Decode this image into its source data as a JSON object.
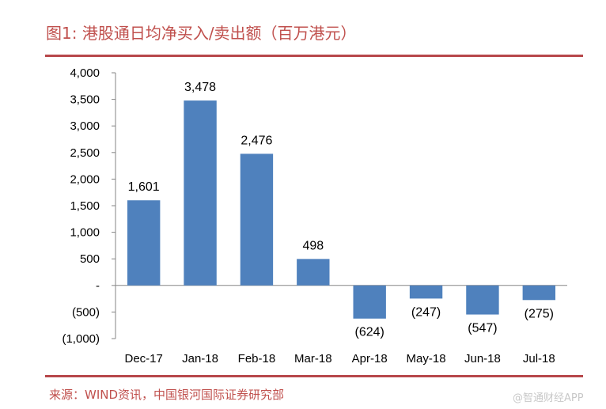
{
  "title": "图1: 港股通日均净买入/卖出额（百万港元）",
  "source": "来源：WIND资讯，中国银河国际证券研究部",
  "watermark": "@智通财经APP",
  "colors": {
    "bar": "#4f81bd",
    "accent": "#c0504d",
    "rule": "#b7474a"
  },
  "chart_data": {
    "type": "bar",
    "title": "图1: 港股通日均净买入/卖出额（百万港元）",
    "xlabel": "",
    "ylabel": "",
    "ylim": [
      -1000,
      4000
    ],
    "yticks": [
      4000,
      3500,
      3000,
      2500,
      2000,
      1500,
      1000,
      500,
      0,
      -500,
      -1000
    ],
    "ytick_labels": [
      "4,000",
      "3,500",
      "3,000",
      "2,500",
      "2,000",
      "1,500",
      "1,000",
      "500",
      "-",
      "(500)",
      "(1,000)"
    ],
    "grid": false,
    "legend": "none",
    "categories": [
      "Dec-17",
      "Jan-18",
      "Feb-18",
      "Mar-18",
      "Apr-18",
      "May-18",
      "Jun-18",
      "Jul-18"
    ],
    "values": [
      1601,
      3478,
      2476,
      498,
      -624,
      -247,
      -547,
      -275
    ],
    "value_labels": [
      "1,601",
      "3,478",
      "2,476",
      "498",
      "(624)",
      "(247)",
      "(547)",
      "(275)"
    ]
  }
}
